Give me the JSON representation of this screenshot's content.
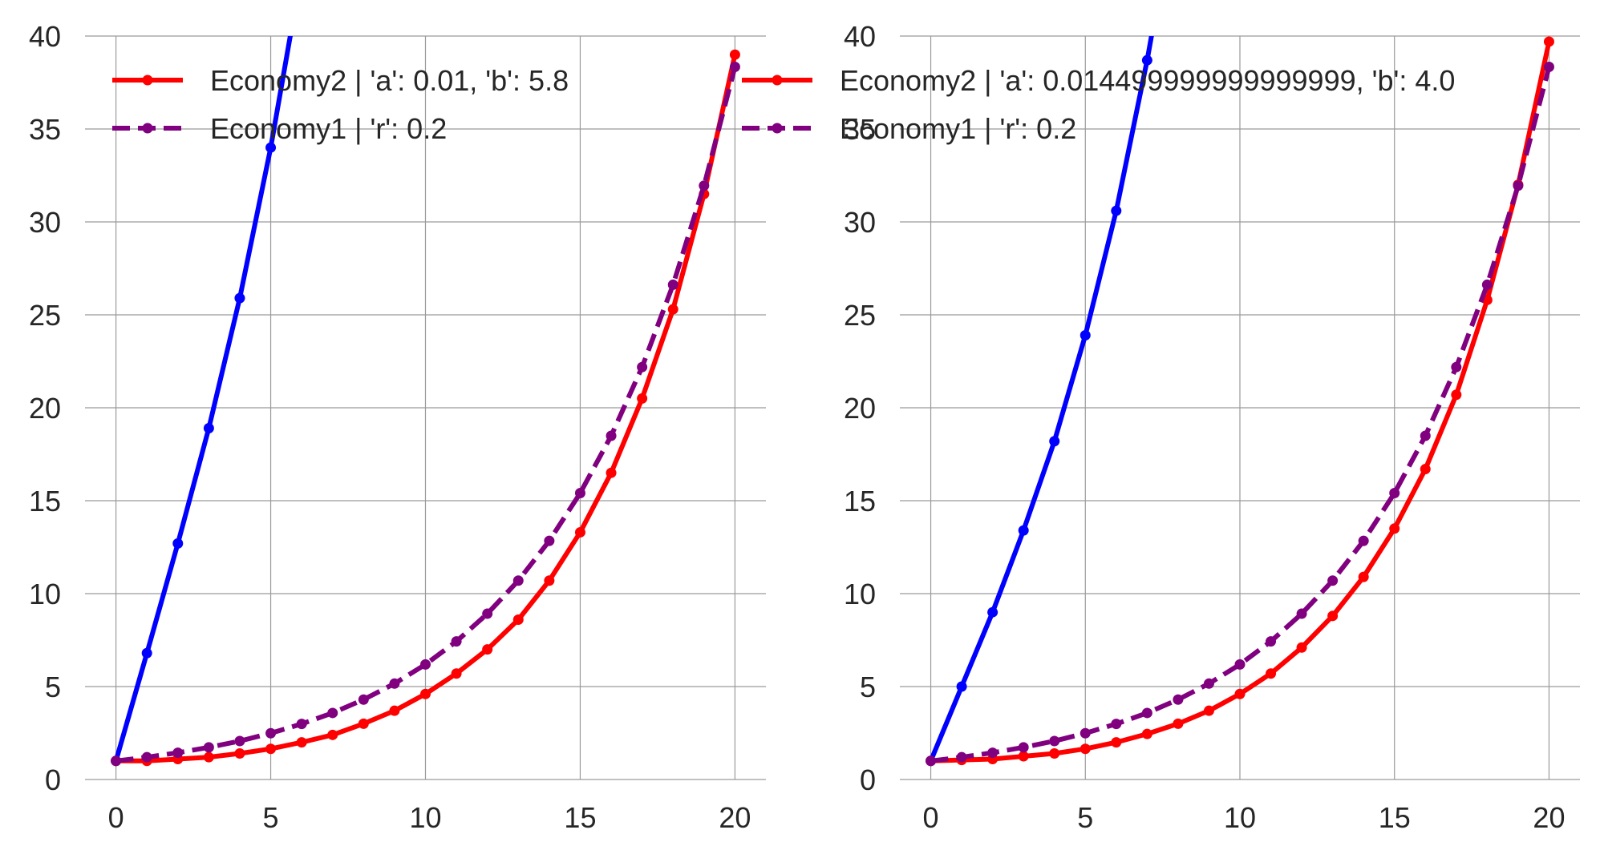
{
  "chart_data": [
    {
      "type": "line",
      "title": "",
      "xlabel": "",
      "ylabel": "",
      "xlim": [
        -1,
        21
      ],
      "ylim": [
        0,
        40
      ],
      "xticks": [
        0,
        5,
        10,
        15,
        20
      ],
      "yticks": [
        0,
        5,
        10,
        15,
        20,
        25,
        30,
        35,
        40
      ],
      "grid": true,
      "legend_position": "top",
      "series": [
        {
          "name": "",
          "color": "#0000ff",
          "dashed": false,
          "x": [
            0,
            1,
            2,
            3,
            4,
            5,
            6
          ],
          "y": [
            1.0,
            6.8,
            12.7,
            18.9,
            25.9,
            34.0,
            43.5
          ]
        },
        {
          "name": "Economy2 | 'a': 0.01, 'b': 5.8",
          "color": "#ff0000",
          "dashed": false,
          "x": [
            0,
            1,
            2,
            3,
            4,
            5,
            6,
            7,
            8,
            9,
            10,
            11,
            12,
            13,
            14,
            15,
            16,
            17,
            18,
            19,
            20
          ],
          "y": [
            1.0,
            1.0,
            1.1,
            1.2,
            1.4,
            1.65,
            2.0,
            2.4,
            3.0,
            3.7,
            4.6,
            5.7,
            7.0,
            8.6,
            10.7,
            13.3,
            16.5,
            20.5,
            25.3,
            31.5,
            39.0
          ]
        },
        {
          "name": "Economy1 | 'r': 0.2",
          "color": "#800080",
          "dashed": true,
          "x": [
            0,
            1,
            2,
            3,
            4,
            5,
            6,
            7,
            8,
            9,
            10,
            11,
            12,
            13,
            14,
            15,
            16,
            17,
            18,
            19,
            20
          ],
          "y": [
            1.0,
            1.2,
            1.44,
            1.73,
            2.07,
            2.49,
            2.99,
            3.58,
            4.3,
            5.16,
            6.19,
            7.43,
            8.92,
            10.7,
            12.84,
            15.41,
            18.49,
            22.19,
            26.62,
            31.95,
            38.34
          ]
        }
      ],
      "legend": [
        {
          "label": "Economy2 | 'a': 0.01, 'b': 5.8",
          "color": "#ff0000",
          "dashed": false
        },
        {
          "label": "Economy1 | 'r': 0.2",
          "color": "#800080",
          "dashed": true
        }
      ]
    },
    {
      "type": "line",
      "title": "",
      "xlabel": "",
      "ylabel": "",
      "xlim": [
        -1,
        21
      ],
      "ylim": [
        0,
        40
      ],
      "xticks": [
        0,
        5,
        10,
        15,
        20
      ],
      "yticks": [
        0,
        5,
        10,
        15,
        20,
        25,
        30,
        35,
        40
      ],
      "grid": true,
      "legend_position": "top",
      "series": [
        {
          "name": "",
          "color": "#0000ff",
          "dashed": false,
          "x": [
            0,
            1,
            2,
            3,
            4,
            5,
            6,
            7,
            8
          ],
          "y": [
            1.0,
            5.0,
            9.0,
            13.4,
            18.2,
            23.9,
            30.6,
            38.7,
            48.0
          ]
        },
        {
          "name": "Economy2 | 'a': 0.014499999999999999, 'b': 4.0",
          "color": "#ff0000",
          "dashed": false,
          "x": [
            0,
            1,
            2,
            3,
            4,
            5,
            6,
            7,
            8,
            9,
            10,
            11,
            12,
            13,
            14,
            15,
            16,
            17,
            18,
            19,
            20
          ],
          "y": [
            1.0,
            1.05,
            1.1,
            1.25,
            1.4,
            1.65,
            2.0,
            2.45,
            3.0,
            3.7,
            4.6,
            5.7,
            7.1,
            8.8,
            10.9,
            13.5,
            16.7,
            20.7,
            25.8,
            32.0,
            39.7
          ]
        },
        {
          "name": "Economy1 | 'r': 0.2",
          "color": "#800080",
          "dashed": true,
          "x": [
            0,
            1,
            2,
            3,
            4,
            5,
            6,
            7,
            8,
            9,
            10,
            11,
            12,
            13,
            14,
            15,
            16,
            17,
            18,
            19,
            20
          ],
          "y": [
            1.0,
            1.2,
            1.44,
            1.73,
            2.07,
            2.49,
            2.99,
            3.58,
            4.3,
            5.16,
            6.19,
            7.43,
            8.92,
            10.7,
            12.84,
            15.41,
            18.49,
            22.19,
            26.62,
            31.95,
            38.34
          ]
        }
      ],
      "legend": [
        {
          "label": "Economy2 | 'a': 0.014499999999999999, 'b': 4.0",
          "color": "#ff0000",
          "dashed": false
        },
        {
          "label": "Economy1 | 'r': 0.2",
          "color": "#800080",
          "dashed": true
        }
      ]
    }
  ]
}
